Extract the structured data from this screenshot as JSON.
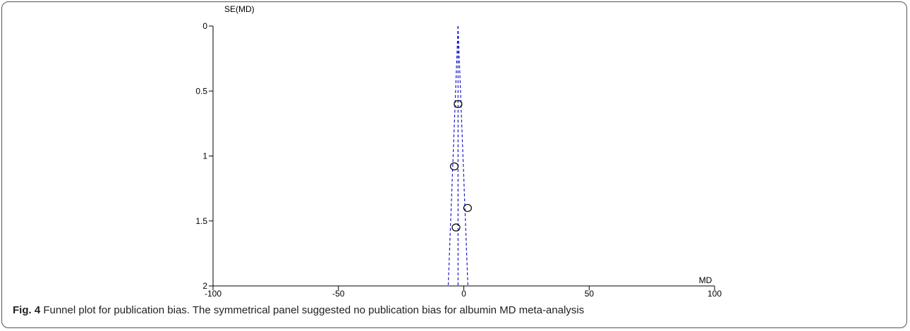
{
  "chart_data": {
    "type": "scatter",
    "title": "",
    "xlabel": "MD",
    "ylabel": "SE(MD)",
    "xlim": [
      -100,
      100
    ],
    "ylim": [
      0,
      2
    ],
    "y_reversed": true,
    "x_ticks": [
      -100,
      -50,
      0,
      50,
      100
    ],
    "x_tick_labels": [
      "-100",
      "-50",
      "0",
      "50",
      "100"
    ],
    "y_ticks": [
      0,
      0.5,
      1,
      1.5,
      2
    ],
    "y_tick_labels": [
      "0",
      "0.5",
      "1",
      "1.5",
      "2"
    ],
    "pooled_estimate": -2.3,
    "grid": false,
    "points": [
      {
        "x": -2.3,
        "y": 0.6
      },
      {
        "x": -3.8,
        "y": 1.08
      },
      {
        "x": 1.5,
        "y": 1.4
      },
      {
        "x": -3.1,
        "y": 1.55
      }
    ],
    "colors": {
      "funnel": "#1a1acc",
      "points": "#000000"
    }
  },
  "caption": {
    "label": "Fig. 4",
    "text": " Funnel plot for publication bias. The symmetrical panel suggested no publication bias for albumin MD meta-analysis"
  }
}
